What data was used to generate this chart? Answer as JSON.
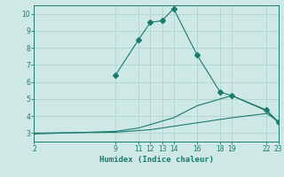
{
  "bg_color": "#cde8e5",
  "grid_color": "#b0d4d0",
  "line_color": "#1a7a6e",
  "xlim": [
    2,
    23
  ],
  "ylim": [
    2.5,
    10.5
  ],
  "xticks": [
    2,
    9,
    11,
    12,
    13,
    14,
    16,
    18,
    19,
    22,
    23
  ],
  "yticks": [
    3,
    4,
    5,
    6,
    7,
    8,
    9,
    10
  ],
  "line1_x": [
    2,
    9,
    11,
    12,
    13,
    14,
    16,
    18,
    19,
    22,
    23
  ],
  "line1_y": [
    3.0,
    3.05,
    3.15,
    3.2,
    3.3,
    3.4,
    3.6,
    3.8,
    3.9,
    4.15,
    3.7
  ],
  "line2_x": [
    2,
    9,
    11,
    12,
    13,
    14,
    16,
    18,
    19,
    22,
    23
  ],
  "line2_y": [
    2.95,
    3.1,
    3.3,
    3.5,
    3.7,
    3.9,
    4.6,
    5.0,
    5.2,
    4.3,
    3.6
  ],
  "line3_x": [
    9,
    11,
    12,
    13,
    14,
    16,
    18,
    19,
    22,
    23
  ],
  "line3_y": [
    6.4,
    8.5,
    9.5,
    9.6,
    10.3,
    7.6,
    5.4,
    5.2,
    4.35,
    3.65
  ],
  "xlabel": "Humidex (Indice chaleur)",
  "marker": "D",
  "markersize": 3
}
